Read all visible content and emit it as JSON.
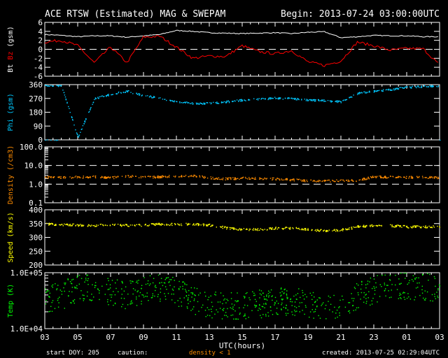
{
  "header": {
    "title": "ACE RTSW (Estimated) MAG & SWEPAM",
    "begin": "Begin: 2013-07-24 03:00:00UTC"
  },
  "footer": {
    "start_doy": "start DOY: 205",
    "caution_label": "caution:",
    "caution_value": "density < 1",
    "created": "created: 2013-07-25 02:29:04UTC"
  },
  "colors": {
    "bt": "#ffffff",
    "bz": "#ff0000",
    "phi": "#00c8ff",
    "density": "#ff8c00",
    "speed": "#ffff00",
    "temp": "#00ff00",
    "caution": "#ff8c00"
  },
  "chart_data": [
    {
      "type": "line",
      "name": "mag-bt-bz",
      "ylabel_parts": [
        "Bt",
        "Bz",
        "(gsm)"
      ],
      "ylim": [
        -6,
        6
      ],
      "yticks": [
        "6",
        "4",
        "2",
        "0",
        "-2",
        "-4",
        "-6"
      ],
      "ytick_values": [
        6,
        4,
        2,
        0,
        -2,
        -4,
        -6
      ],
      "dashed_lines": [
        0
      ],
      "x_hours": [
        0,
        1,
        2,
        3,
        4,
        5,
        6,
        7,
        8,
        9,
        10,
        11,
        12,
        13,
        14,
        15,
        16,
        17,
        18,
        19,
        20,
        21,
        22,
        23,
        24
      ],
      "series": [
        {
          "name": "Bt",
          "values": [
            3.3,
            3.1,
            2.8,
            3.0,
            3.0,
            2.7,
            3.0,
            3.3,
            4.2,
            4.0,
            3.7,
            3.6,
            3.5,
            3.6,
            3.7,
            3.5,
            3.8,
            3.9,
            2.6,
            2.8,
            3.1,
            3.0,
            3.0,
            2.8,
            2.8
          ]
        },
        {
          "name": "Bz",
          "values": [
            1.6,
            2.0,
            0.8,
            -3.0,
            0.5,
            -3.0,
            2.7,
            2.9,
            0.5,
            -2.0,
            -1.5,
            -1.6,
            0.8,
            -0.5,
            -1.0,
            -0.3,
            -2.8,
            -3.6,
            -2.6,
            1.6,
            0.8,
            -0.2,
            0.2,
            0.1,
            -3.5
          ]
        }
      ]
    },
    {
      "type": "scatter",
      "name": "phi",
      "ylabel": "Phi (gsm)",
      "ylim": [
        0,
        360
      ],
      "yticks": [
        "360",
        "270",
        "180",
        "90",
        "0"
      ],
      "ytick_values": [
        360,
        270,
        180,
        90,
        0
      ],
      "x_hours": [
        0,
        1,
        2,
        3,
        4,
        5,
        6,
        7,
        8,
        9,
        10,
        11,
        12,
        13,
        14,
        15,
        16,
        17,
        18,
        19,
        20,
        21,
        22,
        23,
        24
      ],
      "values": [
        358,
        355,
        20,
        270,
        300,
        320,
        290,
        275,
        250,
        240,
        240,
        250,
        262,
        268,
        275,
        272,
        262,
        258,
        250,
        305,
        320,
        330,
        345,
        350,
        355
      ]
    },
    {
      "type": "scatter",
      "name": "density",
      "ylabel": "Density (/cm3)",
      "scale": "log",
      "ylim": [
        0.1,
        100
      ],
      "yticks": [
        "100.0",
        "10.0",
        "1.0",
        "0.1"
      ],
      "ytick_values": [
        100,
        10,
        1,
        0.1
      ],
      "dashed_lines": [
        10,
        1
      ],
      "x_hours": [
        0,
        1,
        2,
        3,
        4,
        5,
        6,
        7,
        8,
        9,
        10,
        11,
        12,
        13,
        14,
        15,
        16,
        17,
        18,
        19,
        20,
        21,
        22,
        23,
        24
      ],
      "values": [
        2.5,
        2.4,
        2.5,
        2.6,
        2.3,
        2.8,
        2.5,
        2.6,
        2.8,
        2.9,
        2.3,
        2.0,
        2.2,
        2.1,
        2.0,
        1.8,
        1.6,
        1.5,
        1.7,
        1.6,
        2.6,
        2.5,
        2.4,
        2.5,
        2.3
      ]
    },
    {
      "type": "scatter",
      "name": "speed",
      "ylabel": "Speed (km/s)",
      "ylim": [
        200,
        400
      ],
      "yticks": [
        "400",
        "350",
        "300",
        "250",
        "200"
      ],
      "ytick_values": [
        400,
        350,
        300,
        250,
        200
      ],
      "x_hours": [
        0,
        1,
        2,
        3,
        4,
        5,
        6,
        7,
        8,
        9,
        10,
        11,
        12,
        13,
        14,
        15,
        16,
        17,
        18,
        19,
        20,
        21,
        22,
        23,
        24
      ],
      "values": [
        350,
        348,
        346,
        345,
        347,
        345,
        346,
        350,
        348,
        350,
        346,
        336,
        330,
        330,
        335,
        335,
        330,
        326,
        328,
        340,
        345,
        344,
        340,
        340,
        340
      ]
    },
    {
      "type": "scatter",
      "name": "temp",
      "ylabel": "Temp (K)",
      "scale": "log",
      "ylim": [
        10000,
        100000
      ],
      "yticks": [
        "1.0E+05",
        "1.0E+04"
      ],
      "ytick_values": [
        100000,
        10000
      ],
      "x_hours": [
        0,
        1,
        2,
        3,
        4,
        5,
        6,
        7,
        8,
        9,
        10,
        11,
        12,
        13,
        14,
        15,
        16,
        17,
        18,
        19,
        20,
        21,
        22,
        23,
        24
      ],
      "values": [
        35000,
        38000,
        55000,
        50000,
        45000,
        40000,
        48000,
        55000,
        45000,
        32000,
        28000,
        26000,
        25000,
        28000,
        30000,
        32000,
        28000,
        27000,
        26000,
        40000,
        50000,
        55000,
        60000,
        58000,
        50000
      ]
    }
  ],
  "xaxis": {
    "label": "UTC(hours)",
    "ticks": [
      "03",
      "05",
      "07",
      "09",
      "11",
      "13",
      "15",
      "17",
      "19",
      "21",
      "23",
      "01",
      "03"
    ],
    "tick_hours": [
      0,
      2,
      4,
      6,
      8,
      10,
      12,
      14,
      16,
      18,
      20,
      22,
      24
    ]
  }
}
